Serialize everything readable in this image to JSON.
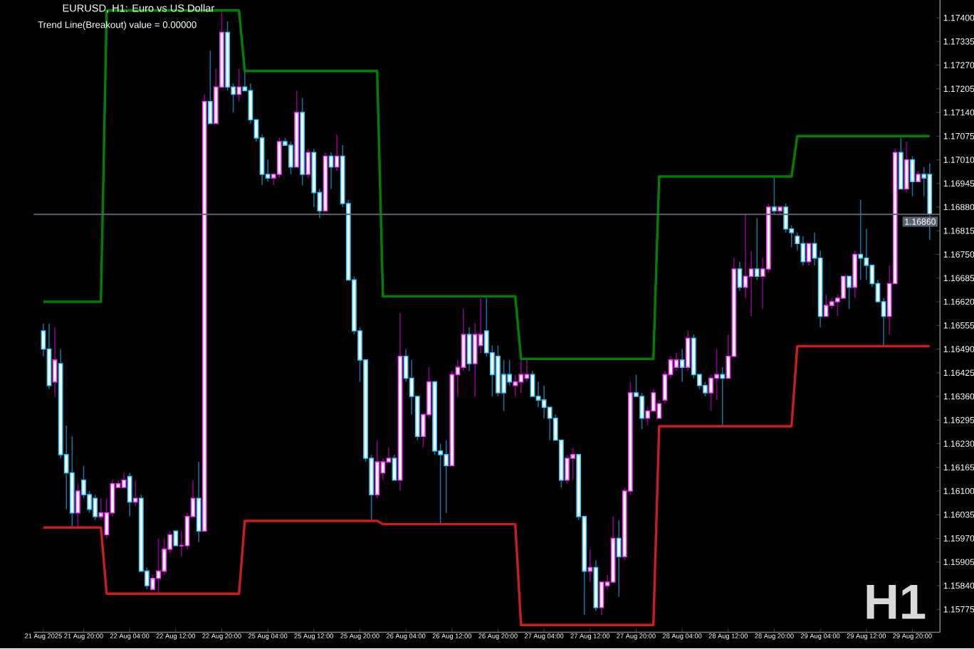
{
  "chart_data": {
    "type": "candlestick",
    "title": "EURUSD, H1: Euro vs US Dollar",
    "subtitle": "Trend Line(Breakout) value = 0.00000",
    "annotations": [
      "H1"
    ],
    "categories": [
      "21 Aug 2025",
      null,
      null,
      null,
      null,
      null,
      null,
      "21 Aug 20:00",
      null,
      null,
      null,
      null,
      null,
      null,
      null,
      "22 Aug 04:00",
      null,
      null,
      null,
      null,
      null,
      null,
      null,
      "22 Aug 12:00",
      null,
      null,
      null,
      null,
      null,
      null,
      null,
      "22 Aug 20:00",
      null,
      null,
      null,
      null,
      null,
      null,
      null,
      "25 Aug 04:00",
      null,
      null,
      null,
      null,
      null,
      null,
      null,
      "25 Aug 12:00",
      null,
      null,
      null,
      null,
      null,
      null,
      null,
      "25 Aug 20:00",
      null,
      null,
      null,
      null,
      null,
      null,
      null,
      "26 Aug 04:00",
      null,
      null,
      null,
      null,
      null,
      null,
      null,
      "26 Aug 12:00",
      null,
      null,
      null,
      null,
      null,
      null,
      null,
      "26 Aug 20:00",
      null,
      null,
      null,
      null,
      null,
      null,
      null,
      "27 Aug 04:00",
      null,
      null,
      null,
      null,
      null,
      null,
      null,
      "27 Aug 12:00",
      null,
      null,
      null,
      null,
      null,
      null,
      null,
      "27 Aug 20:00",
      null,
      null,
      null,
      null,
      null,
      null,
      null,
      "28 Aug 04:00",
      null,
      null,
      null,
      null,
      null,
      null,
      null,
      "28 Aug 12:00",
      null,
      null,
      null,
      null,
      null,
      null,
      null,
      "28 Aug 20:00",
      null,
      null,
      null,
      null,
      null,
      null,
      null,
      "29 Aug 04:00",
      null,
      null,
      null,
      null,
      null,
      null,
      null,
      "29 Aug 12:00",
      null,
      null,
      null,
      null,
      null,
      null,
      null,
      "29 Aug 20:00",
      null,
      null,
      null
    ],
    "ohlc": [
      [
        1.1654,
        1.1656,
        1.1647,
        1.1649
      ],
      [
        1.1649,
        1.1656,
        1.1638,
        1.1639
      ],
      [
        1.164,
        1.1655,
        1.1636,
        1.1646
      ],
      [
        1.1645,
        1.1649,
        1.1619,
        1.162
      ],
      [
        1.162,
        1.1628,
        1.1605,
        1.1615
      ],
      [
        1.1615,
        1.1625,
        1.16,
        1.1604
      ],
      [
        1.1604,
        1.1612,
        1.16,
        1.161
      ],
      [
        1.1613,
        1.1617,
        1.1608,
        1.1609
      ],
      [
        1.1609,
        1.161,
        1.1604,
        1.1605
      ],
      [
        1.1608,
        1.1609,
        1.1602,
        1.1603
      ],
      [
        1.1603,
        1.1608,
        1.1602,
        1.1604
      ],
      [
        1.1598,
        1.1608,
        1.1597,
        1.1604
      ],
      [
        1.1604,
        1.1613,
        1.1603,
        1.1612
      ],
      [
        1.1611,
        1.1613,
        1.1611,
        1.1612
      ],
      [
        1.1611,
        1.1615,
        1.1611,
        1.1613
      ],
      [
        1.1614,
        1.1615,
        1.1603,
        1.1607
      ],
      [
        1.1607,
        1.1613,
        1.1606,
        1.1608
      ],
      [
        1.1608,
        1.1609,
        1.1588,
        1.1588
      ],
      [
        1.1588,
        1.1589,
        1.1583,
        1.1584
      ],
      [
        1.1583,
        1.1587,
        1.1583,
        1.1586
      ],
      [
        1.1586,
        1.1597,
        1.1582,
        1.1588
      ],
      [
        1.1588,
        1.1597,
        1.1587,
        1.1594
      ],
      [
        1.1594,
        1.1599,
        1.1593,
        1.1598
      ],
      [
        1.1599,
        1.1599,
        1.1595,
        1.1595
      ],
      [
        1.1595,
        1.1599,
        1.1592,
        1.1595
      ],
      [
        1.1595,
        1.1604,
        1.1594,
        1.1603
      ],
      [
        1.1603,
        1.1613,
        1.1603,
        1.1608
      ],
      [
        1.1608,
        1.1618,
        1.1596,
        1.1599
      ],
      [
        1.1599,
        1.1719,
        1.1599,
        1.1717
      ],
      [
        1.1717,
        1.1731,
        1.1711,
        1.1711
      ],
      [
        1.1711,
        1.1726,
        1.1711,
        1.1721
      ],
      [
        1.1721,
        1.1742,
        1.1721,
        1.1736
      ],
      [
        1.1736,
        1.1739,
        1.172,
        1.1721
      ],
      [
        1.1721,
        1.1722,
        1.1714,
        1.1719
      ],
      [
        1.1719,
        1.1726,
        1.1717,
        1.1721
      ],
      [
        1.1721,
        1.1726,
        1.172,
        1.172
      ],
      [
        1.172,
        1.1722,
        1.1711,
        1.1712
      ],
      [
        1.1712,
        1.1712,
        1.1706,
        1.1707
      ],
      [
        1.1707,
        1.1708,
        1.1694,
        1.1697
      ],
      [
        1.1697,
        1.1701,
        1.1695,
        1.1696
      ],
      [
        1.1696,
        1.1697,
        1.1694,
        1.1697
      ],
      [
        1.1697,
        1.1707,
        1.1696,
        1.1706
      ],
      [
        1.1706,
        1.1707,
        1.1705,
        1.1705
      ],
      [
        1.1705,
        1.1706,
        1.1697,
        1.1699
      ],
      [
        1.1699,
        1.172,
        1.1699,
        1.1714
      ],
      [
        1.1714,
        1.1718,
        1.1694,
        1.1697
      ],
      [
        1.1697,
        1.1704,
        1.1696,
        1.1703
      ],
      [
        1.1703,
        1.1704,
        1.1688,
        1.1692
      ],
      [
        1.1692,
        1.1693,
        1.1685,
        1.1687
      ],
      [
        1.1687,
        1.1703,
        1.1687,
        1.1702
      ],
      [
        1.1702,
        1.1703,
        1.1693,
        1.1699
      ],
      [
        1.1699,
        1.1708,
        1.1698,
        1.1702
      ],
      [
        1.1702,
        1.1705,
        1.1688,
        1.1689
      ],
      [
        1.1689,
        1.169,
        1.1668,
        1.1668
      ],
      [
        1.1668,
        1.1669,
        1.1653,
        1.1654
      ],
      [
        1.1654,
        1.1655,
        1.164,
        1.1646
      ],
      [
        1.1646,
        1.1646,
        1.1618,
        1.1619
      ],
      [
        1.1619,
        1.162,
        1.1602,
        1.1609
      ],
      [
        1.1609,
        1.1624,
        1.1608,
        1.1618
      ],
      [
        1.1615,
        1.1619,
        1.1613,
        1.1618
      ],
      [
        1.1618,
        1.1622,
        1.1618,
        1.1619
      ],
      [
        1.1619,
        1.162,
        1.1613,
        1.1613
      ],
      [
        1.1613,
        1.1659,
        1.161,
        1.1647
      ],
      [
        1.1647,
        1.1649,
        1.164,
        1.1641
      ],
      [
        1.1641,
        1.1646,
        1.1631,
        1.1636
      ],
      [
        1.1636,
        1.1636,
        1.1624,
        1.1625
      ],
      [
        1.1625,
        1.1631,
        1.1622,
        1.1631
      ],
      [
        1.1631,
        1.1644,
        1.163,
        1.164
      ],
      [
        1.164,
        1.164,
        1.162,
        1.1621
      ],
      [
        1.1621,
        1.1623,
        1.1601,
        1.162
      ],
      [
        1.162,
        1.1624,
        1.1604,
        1.1617
      ],
      [
        1.1617,
        1.1643,
        1.1617,
        1.1642
      ],
      [
        1.1642,
        1.1646,
        1.1636,
        1.1644
      ],
      [
        1.1644,
        1.166,
        1.1643,
        1.1653
      ],
      [
        1.1653,
        1.1655,
        1.1643,
        1.1645
      ],
      [
        1.1645,
        1.1656,
        1.1636,
        1.1653
      ],
      [
        1.165,
        1.1663,
        1.1648,
        1.1653
      ],
      [
        1.1654,
        1.1663,
        1.1647,
        1.1648
      ],
      [
        1.1648,
        1.165,
        1.1636,
        1.1642
      ],
      [
        1.1647,
        1.165,
        1.1636,
        1.1637
      ],
      [
        1.1642,
        1.1646,
        1.1632,
        1.1637
      ],
      [
        1.1642,
        1.1646,
        1.1639,
        1.164
      ],
      [
        1.1639,
        1.1642,
        1.1636,
        1.164
      ],
      [
        1.164,
        1.1646,
        1.1637,
        1.1642
      ],
      [
        1.1641,
        1.1646,
        1.164,
        1.1642
      ],
      [
        1.1642,
        1.1643,
        1.1636,
        1.1636
      ],
      [
        1.1636,
        1.164,
        1.1633,
        1.1635
      ],
      [
        1.1635,
        1.1639,
        1.163,
        1.1633
      ],
      [
        1.1633,
        1.1633,
        1.1624,
        1.163
      ],
      [
        1.163,
        1.1631,
        1.1624,
        1.1624
      ],
      [
        1.1624,
        1.1624,
        1.1611,
        1.1613
      ],
      [
        1.1613,
        1.162,
        1.1612,
        1.1619
      ],
      [
        1.1619,
        1.1622,
        1.1613,
        1.162
      ],
      [
        1.162,
        1.162,
        1.1602,
        1.1603
      ],
      [
        1.1603,
        1.1603,
        1.1576,
        1.1588
      ],
      [
        1.1588,
        1.1594,
        1.1585,
        1.1589
      ],
      [
        1.1589,
        1.1591,
        1.1577,
        1.1578
      ],
      [
        1.1578,
        1.1585,
        1.1576,
        1.1585
      ],
      [
        1.1584,
        1.1587,
        1.1583,
        1.1585
      ],
      [
        1.1585,
        1.1603,
        1.1585,
        1.1597
      ],
      [
        1.1597,
        1.1602,
        1.1581,
        1.1592
      ],
      [
        1.1592,
        1.1611,
        1.1591,
        1.161
      ],
      [
        1.161,
        1.164,
        1.1609,
        1.1637
      ],
      [
        1.1637,
        1.1642,
        1.1636,
        1.1636
      ],
      [
        1.1636,
        1.1637,
        1.1627,
        1.163
      ],
      [
        1.163,
        1.1633,
        1.1628,
        1.1632
      ],
      [
        1.1632,
        1.1638,
        1.1632,
        1.1637
      ],
      [
        1.163,
        1.1635,
        1.163,
        1.1634
      ],
      [
        1.1635,
        1.1643,
        1.1634,
        1.1642
      ],
      [
        1.1642,
        1.1647,
        1.1641,
        1.1646
      ],
      [
        1.1644,
        1.1648,
        1.1643,
        1.1646
      ],
      [
        1.1646,
        1.1649,
        1.164,
        1.1644
      ],
      [
        1.1644,
        1.1654,
        1.1643,
        1.1652
      ],
      [
        1.1652,
        1.1653,
        1.1641,
        1.1642
      ],
      [
        1.1642,
        1.1642,
        1.1638,
        1.1639
      ],
      [
        1.1639,
        1.164,
        1.1636,
        1.1637
      ],
      [
        1.1637,
        1.1642,
        1.1632,
        1.1641
      ],
      [
        1.1641,
        1.1649,
        1.1635,
        1.1642
      ],
      [
        1.1642,
        1.1644,
        1.1628,
        1.1641
      ],
      [
        1.1641,
        1.1653,
        1.1641,
        1.1647
      ],
      [
        1.1647,
        1.1674,
        1.1647,
        1.1671
      ],
      [
        1.1671,
        1.1673,
        1.1665,
        1.1666
      ],
      [
        1.1666,
        1.1686,
        1.1663,
        1.1669
      ],
      [
        1.1669,
        1.1676,
        1.1658,
        1.1671
      ],
      [
        1.1671,
        1.1685,
        1.1668,
        1.1669
      ],
      [
        1.1669,
        1.1674,
        1.166,
        1.1671
      ],
      [
        1.1671,
        1.1689,
        1.167,
        1.1688
      ],
      [
        1.1688,
        1.1696,
        1.1686,
        1.1687
      ],
      [
        1.1687,
        1.1688,
        1.1686,
        1.1688
      ],
      [
        1.1688,
        1.1689,
        1.1681,
        1.1682
      ],
      [
        1.1682,
        1.1683,
        1.1677,
        1.1681
      ],
      [
        1.168,
        1.1681,
        1.1676,
        1.1678
      ],
      [
        1.1678,
        1.168,
        1.1672,
        1.1673
      ],
      [
        1.1673,
        1.1678,
        1.1672,
        1.1678
      ],
      [
        1.1678,
        1.1681,
        1.1672,
        1.1674
      ],
      [
        1.1674,
        1.1676,
        1.1655,
        1.1658
      ],
      [
        1.1658,
        1.1664,
        1.1658,
        1.1661
      ],
      [
        1.1661,
        1.1663,
        1.166,
        1.1662
      ],
      [
        1.1662,
        1.1664,
        1.1658,
        1.1663
      ],
      [
        1.1663,
        1.1669,
        1.1663,
        1.1669
      ],
      [
        1.1669,
        1.1669,
        1.166,
        1.1666
      ],
      [
        1.1666,
        1.1676,
        1.1663,
        1.1675
      ],
      [
        1.1675,
        1.169,
        1.1668,
        1.1674
      ],
      [
        1.1674,
        1.1682,
        1.1668,
        1.1672
      ],
      [
        1.1672,
        1.1672,
        1.1666,
        1.1667
      ],
      [
        1.1667,
        1.1668,
        1.1662,
        1.1662
      ],
      [
        1.1662,
        1.1663,
        1.165,
        1.1658
      ],
      [
        1.1658,
        1.1672,
        1.1653,
        1.1667
      ],
      [
        1.1667,
        1.1704,
        1.1667,
        1.1703
      ],
      [
        1.1703,
        1.1707,
        1.1693,
        1.1693
      ],
      [
        1.1693,
        1.1706,
        1.1692,
        1.1701
      ],
      [
        1.1701,
        1.1702,
        1.1691,
        1.1695
      ],
      [
        1.1695,
        1.1698,
        1.1695,
        1.1697
      ],
      [
        1.1697,
        1.1699,
        1.1691,
        1.1696
      ],
      [
        1.1697,
        1.17,
        1.1679,
        1.1686
      ]
    ],
    "series": [
      {
        "type": "line",
        "color": "#008000",
        "values": [
          1.1662,
          1.1662,
          1.1662,
          1.1662,
          1.1662,
          1.1662,
          1.1662,
          1.1662,
          1.1662,
          1.1662,
          1.1662,
          1.1742,
          1.1742,
          1.1742,
          1.1742,
          1.1742,
          1.1742,
          1.1742,
          1.1742,
          1.1742,
          1.1742,
          1.1742,
          1.1742,
          1.1742,
          1.1742,
          1.1742,
          1.1742,
          1.1742,
          1.1742,
          1.1742,
          1.1742,
          1.1742,
          1.1742,
          1.1742,
          1.1742,
          1.17254,
          1.17254,
          1.17254,
          1.17254,
          1.17254,
          1.17254,
          1.17254,
          1.17254,
          1.17254,
          1.17254,
          1.17254,
          1.17254,
          1.17254,
          1.17254,
          1.17254,
          1.17254,
          1.17254,
          1.17254,
          1.17254,
          1.17254,
          1.17254,
          1.17254,
          1.17254,
          1.17254,
          1.16635,
          1.16635,
          1.16635,
          1.16635,
          1.16635,
          1.16635,
          1.16635,
          1.16635,
          1.16635,
          1.16635,
          1.16635,
          1.16635,
          1.16635,
          1.16635,
          1.16635,
          1.16635,
          1.16635,
          1.16635,
          1.16635,
          1.16635,
          1.16635,
          1.16635,
          1.16635,
          1.16635,
          1.16463,
          1.16463,
          1.16463,
          1.16463,
          1.16463,
          1.16463,
          1.16463,
          1.16463,
          1.16463,
          1.16463,
          1.16463,
          1.16463,
          1.16463,
          1.16463,
          1.16463,
          1.16463,
          1.16463,
          1.16463,
          1.16463,
          1.16463,
          1.16463,
          1.16463,
          1.16463,
          1.16463,
          1.16964,
          1.16964,
          1.16964,
          1.16964,
          1.16964,
          1.16964,
          1.16964,
          1.16964,
          1.16964,
          1.16964,
          1.16964,
          1.16964,
          1.16964,
          1.16964,
          1.16964,
          1.16964,
          1.16964,
          1.16964,
          1.16964,
          1.16964,
          1.16964,
          1.16964,
          1.16964,
          1.16964,
          1.17075,
          1.17075,
          1.17075,
          1.17075,
          1.17075,
          1.17075,
          1.17075,
          1.17075,
          1.17075,
          1.17075,
          1.17075,
          1.17075,
          1.17075,
          1.17075,
          1.17075,
          1.17075,
          1.17075,
          1.17075,
          1.17075,
          1.17075,
          1.17075,
          1.17075,
          1.17075,
          1.17075
        ]
      },
      {
        "type": "line",
        "color": "#c81e1e",
        "values": [
          1.16,
          1.16,
          1.16,
          1.16,
          1.16,
          1.16,
          1.16,
          1.16,
          1.16,
          1.16,
          1.16,
          1.15818,
          1.15818,
          1.15818,
          1.15818,
          1.15818,
          1.15818,
          1.15818,
          1.15818,
          1.15818,
          1.15818,
          1.15818,
          1.15818,
          1.15818,
          1.15818,
          1.15818,
          1.15818,
          1.15818,
          1.15818,
          1.15818,
          1.15818,
          1.15818,
          1.15818,
          1.15818,
          1.15818,
          1.16018,
          1.16018,
          1.16018,
          1.16018,
          1.16018,
          1.16018,
          1.16018,
          1.16018,
          1.16018,
          1.16018,
          1.16018,
          1.16018,
          1.16018,
          1.16018,
          1.16018,
          1.16018,
          1.16018,
          1.16018,
          1.16018,
          1.16018,
          1.16018,
          1.16018,
          1.16018,
          1.16018,
          1.16009,
          1.16009,
          1.16009,
          1.16009,
          1.16009,
          1.16009,
          1.16009,
          1.16009,
          1.16009,
          1.16009,
          1.16009,
          1.16009,
          1.16009,
          1.16009,
          1.16009,
          1.16009,
          1.16009,
          1.16009,
          1.16009,
          1.16009,
          1.16009,
          1.16009,
          1.16009,
          1.16009,
          1.15732,
          1.15732,
          1.15732,
          1.15732,
          1.15732,
          1.15732,
          1.15732,
          1.15732,
          1.15732,
          1.15732,
          1.15732,
          1.15732,
          1.15732,
          1.15732,
          1.15732,
          1.15732,
          1.15732,
          1.15732,
          1.15732,
          1.15732,
          1.15732,
          1.15732,
          1.15732,
          1.15732,
          1.16278,
          1.16278,
          1.16278,
          1.16278,
          1.16278,
          1.16278,
          1.16278,
          1.16278,
          1.16278,
          1.16278,
          1.16278,
          1.16278,
          1.16278,
          1.16278,
          1.16278,
          1.16278,
          1.16278,
          1.16278,
          1.16278,
          1.16278,
          1.16278,
          1.16278,
          1.16278,
          1.16278,
          1.16498,
          1.16498,
          1.16498,
          1.16498,
          1.16498,
          1.16498,
          1.16498,
          1.16498,
          1.16498,
          1.16498,
          1.16498,
          1.16498,
          1.16498,
          1.16498,
          1.16498,
          1.16498,
          1.16498,
          1.16498,
          1.16498,
          1.16498,
          1.16498,
          1.16498,
          1.16498,
          1.16498
        ]
      }
    ],
    "ref_lines": [
      {
        "axis": "y",
        "value": 1.1686,
        "label": "1.16860",
        "color": "#5a6470"
      }
    ],
    "ylim": [
      1.15712,
      1.17449
    ],
    "yticks": [
      {
        "value": 1.15775,
        "label": "1.15775"
      },
      {
        "value": 1.1584,
        "label": "1.15840"
      },
      {
        "value": 1.15905,
        "label": "1.15905"
      },
      {
        "value": 1.1597,
        "label": "1.15970"
      },
      {
        "value": 1.16035,
        "label": "1.16035"
      },
      {
        "value": 1.161,
        "label": "1.16100"
      },
      {
        "value": 1.16165,
        "label": "1.16165"
      },
      {
        "value": 1.1623,
        "label": "1.16230"
      },
      {
        "value": 1.16295,
        "label": "1.16295"
      },
      {
        "value": 1.1636,
        "label": "1.16360"
      },
      {
        "value": 1.16425,
        "label": "1.16425"
      },
      {
        "value": 1.1649,
        "label": "1.16490"
      },
      {
        "value": 1.16555,
        "label": "1.16555"
      },
      {
        "value": 1.1662,
        "label": "1.16620"
      },
      {
        "value": 1.16685,
        "label": "1.16685"
      },
      {
        "value": 1.1675,
        "label": "1.16750"
      },
      {
        "value": 1.16815,
        "label": "1.16815"
      },
      {
        "value": 1.1688,
        "label": "1.16880"
      },
      {
        "value": 1.16945,
        "label": "1.16945"
      },
      {
        "value": 1.1701,
        "label": "1.17010"
      },
      {
        "value": 1.17075,
        "label": "1.17075"
      },
      {
        "value": 1.1714,
        "label": "1.17140"
      },
      {
        "value": 1.17205,
        "label": "1.17205"
      },
      {
        "value": 1.1727,
        "label": "1.17270"
      },
      {
        "value": 1.17335,
        "label": "1.17335"
      },
      {
        "value": 1.174,
        "label": "1.17400"
      }
    ],
    "grid": false
  }
}
